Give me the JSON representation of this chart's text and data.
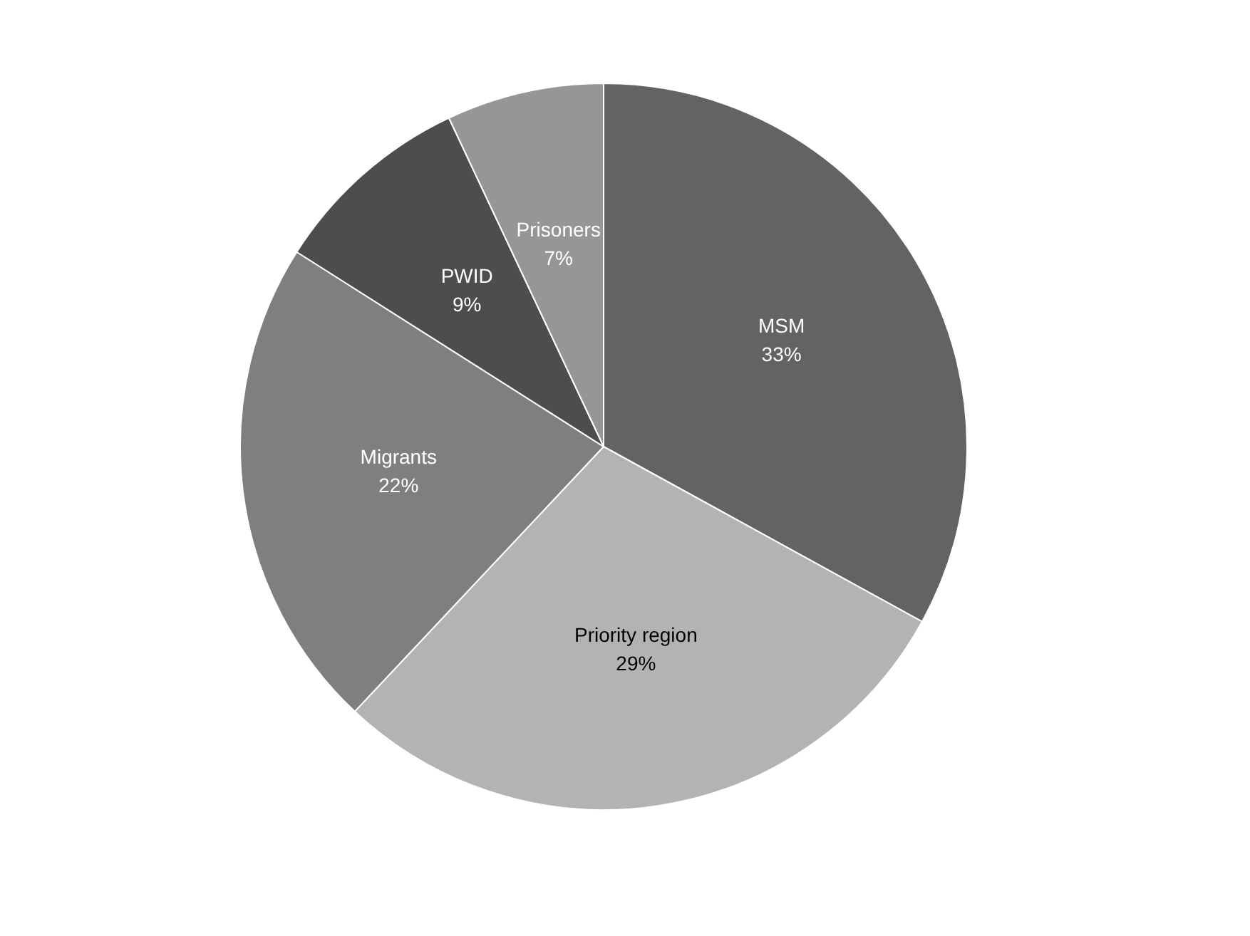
{
  "chart_data": {
    "type": "pie",
    "categories": [
      "MSM",
      "Priority region",
      "Migrants",
      "PWID",
      "Prisoners"
    ],
    "values": [
      33,
      29,
      22,
      9,
      7
    ],
    "value_labels": [
      "33%",
      "29%",
      "22%",
      "9%",
      "7%"
    ],
    "colors": [
      "#636363",
      "#b3b3b3",
      "#7f7f7f",
      "#4d4d4d",
      "#969696"
    ],
    "legend": false
  }
}
